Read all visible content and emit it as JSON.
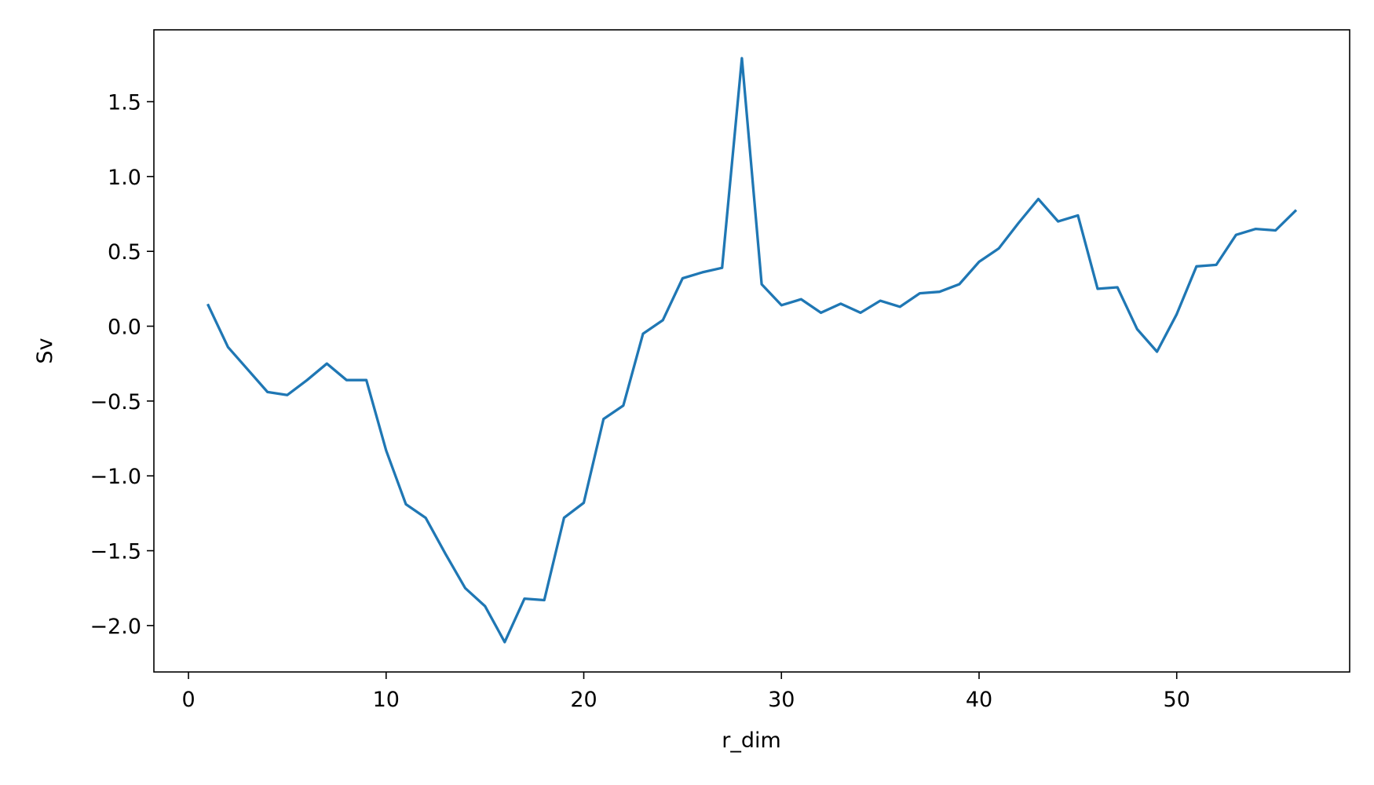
{
  "chart_data": {
    "type": "line",
    "title": "",
    "xlabel": "r_dim",
    "ylabel": "Sv",
    "xlim": [
      -1.75,
      58.75
    ],
    "ylim": [
      -2.31,
      1.98
    ],
    "xticks": [
      0,
      10,
      20,
      30,
      40,
      50
    ],
    "xtick_labels": [
      "0",
      "10",
      "20",
      "30",
      "40",
      "50"
    ],
    "yticks": [
      -2.0,
      -1.5,
      -1.0,
      -0.5,
      0.0,
      0.5,
      1.0,
      1.5
    ],
    "ytick_labels": [
      "−2.0",
      "−1.5",
      "−1.0",
      "−0.5",
      "0.0",
      "0.5",
      "1.0",
      "1.5"
    ],
    "grid": false,
    "legend": "none",
    "line_color": "#1f77b4",
    "series": [
      {
        "x": [
          1,
          2,
          3,
          4,
          5,
          6,
          7,
          8,
          9,
          10,
          11,
          12,
          13,
          14,
          15,
          16,
          17,
          18,
          19,
          20,
          21,
          22,
          23,
          24,
          25,
          26,
          27,
          28,
          29,
          30,
          31,
          32,
          33,
          34,
          35,
          36,
          37,
          38,
          39,
          40,
          41,
          42,
          43,
          44,
          45,
          46,
          47,
          48,
          49,
          50,
          51,
          52,
          53,
          54,
          55,
          56
        ],
        "values": [
          0.14,
          -0.14,
          -0.29,
          -0.44,
          -0.46,
          -0.36,
          -0.25,
          -0.36,
          -0.36,
          -0.83,
          -1.19,
          -1.28,
          -1.52,
          -1.75,
          -1.87,
          -2.11,
          -1.82,
          -1.83,
          -1.28,
          -1.18,
          -0.62,
          -0.53,
          -0.05,
          0.04,
          0.32,
          0.36,
          0.39,
          1.79,
          0.28,
          0.14,
          0.18,
          0.09,
          0.15,
          0.09,
          0.17,
          0.13,
          0.22,
          0.23,
          0.28,
          0.43,
          0.52,
          0.69,
          0.85,
          0.7,
          0.74,
          0.25,
          0.26,
          -0.02,
          -0.17,
          0.08,
          0.4,
          0.41,
          0.61,
          0.65,
          0.64,
          0.77
        ]
      }
    ]
  }
}
